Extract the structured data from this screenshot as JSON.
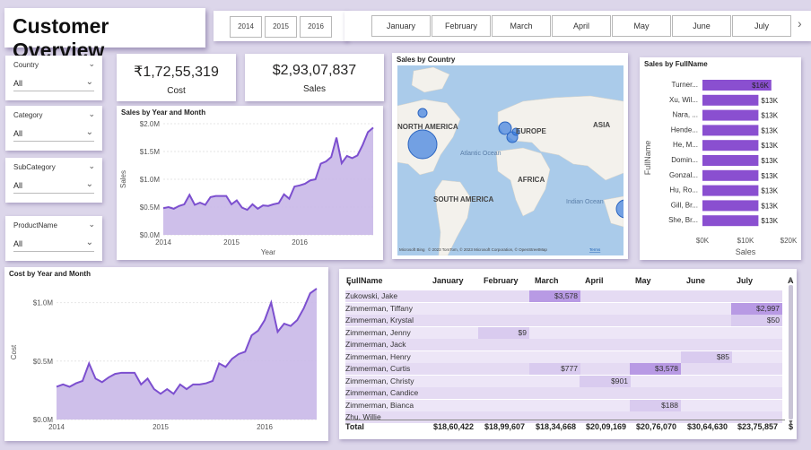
{
  "page_title": "Customer Overview",
  "year_slicer": [
    "2014",
    "2015",
    "2016"
  ],
  "month_slicer": [
    "January",
    "February",
    "March",
    "April",
    "May",
    "June",
    "July"
  ],
  "filters": [
    {
      "label": "Country",
      "value": "All"
    },
    {
      "label": "Category",
      "value": "All"
    },
    {
      "label": "SubCategory",
      "value": "All"
    },
    {
      "label": "ProductName",
      "value": "All"
    }
  ],
  "kpis": {
    "cost": {
      "value": "₹1,72,55,319",
      "caption": "Cost"
    },
    "sales": {
      "value": "$2,93,07,837",
      "caption": "Sales"
    }
  },
  "sales_chart_title": "Sales by Year and Month",
  "cost_chart_title": "Cost by Year and Month",
  "map": {
    "title": "Sales by Country",
    "labels": [
      "NORTH AMERICA",
      "EUROPE",
      "ASIA",
      "Atlantic Ocean",
      "AFRICA",
      "SOUTH AMERICA",
      "Indian Ocean"
    ],
    "attribution": "Microsoft Bing",
    "copyright": "© 2023 TomTom, © 2023 Microsoft Corporation, © OpenStreetMap",
    "terms": "Terms"
  },
  "table": {
    "columns": [
      "FullName",
      "January",
      "February",
      "March",
      "April",
      "May",
      "June",
      "July",
      "A"
    ],
    "rows": [
      {
        "name": "Zukowski, Jake",
        "cells": {
          "2": "$3,578"
        }
      },
      {
        "name": "Zimmerman, Tiffany",
        "cells": {
          "6": "$2,997"
        }
      },
      {
        "name": "Zimmerman, Krystal",
        "cells": {
          "6": "$50"
        }
      },
      {
        "name": "Zimmerman, Jenny",
        "cells": {
          "1": "$9"
        }
      },
      {
        "name": "Zimmerman, Jack",
        "cells": {}
      },
      {
        "name": "Zimmerman, Henry",
        "cells": {
          "5": "$85"
        }
      },
      {
        "name": "Zimmerman, Curtis",
        "cells": {
          "2": "$777",
          "4": "$3,578"
        }
      },
      {
        "name": "Zimmerman, Christy",
        "cells": {
          "3": "$901"
        }
      },
      {
        "name": "Zimmerman, Candice",
        "cells": {}
      },
      {
        "name": "Zimmerman, Bianca",
        "cells": {
          "4": "$188"
        }
      },
      {
        "name": "Zhu, Willie",
        "cells": {}
      }
    ],
    "total_label": "Total",
    "totals": [
      "$18,60,422",
      "$18,99,607",
      "$18,34,668",
      "$20,09,169",
      "$20,76,070",
      "$30,64,630",
      "$23,75,857",
      "$"
    ]
  },
  "chart_data": [
    {
      "type": "area",
      "title": "Sales by Year and Month",
      "xlabel": "Year",
      "ylabel": "Sales",
      "x_ticks": [
        "2014",
        "2015",
        "2016"
      ],
      "y_ticks": [
        "$0.0M",
        "$0.5M",
        "$1.0M",
        "$1.5M",
        "$2.0M"
      ],
      "ylim": [
        0,
        2.0
      ],
      "unit": "M",
      "values": [
        0.48,
        0.5,
        0.47,
        0.52,
        0.55,
        0.72,
        0.54,
        0.58,
        0.54,
        0.68,
        0.7,
        0.7,
        0.7,
        0.55,
        0.62,
        0.49,
        0.45,
        0.55,
        0.47,
        0.53,
        0.52,
        0.55,
        0.57,
        0.73,
        0.65,
        0.87,
        0.89,
        0.92,
        0.98,
        1.0,
        1.28,
        1.32,
        1.4,
        1.75,
        1.29,
        1.42,
        1.38,
        1.43,
        1.62,
        1.85,
        1.93
      ]
    },
    {
      "type": "area",
      "title": "Cost by Year and Month",
      "xlabel": "",
      "ylabel": "Cost",
      "x_ticks": [
        "2014",
        "2015",
        "2016"
      ],
      "y_ticks": [
        "$0.0M",
        "$0.5M",
        "$1.0M"
      ],
      "ylim": [
        0,
        1.15
      ],
      "unit": "M",
      "values": [
        0.28,
        0.3,
        0.28,
        0.31,
        0.33,
        0.48,
        0.35,
        0.32,
        0.36,
        0.39,
        0.4,
        0.4,
        0.4,
        0.3,
        0.35,
        0.26,
        0.22,
        0.26,
        0.22,
        0.3,
        0.26,
        0.3,
        0.3,
        0.31,
        0.33,
        0.48,
        0.45,
        0.52,
        0.56,
        0.58,
        0.72,
        0.76,
        0.85,
        1.0,
        0.75,
        0.82,
        0.8,
        0.85,
        0.95,
        1.08,
        1.12
      ]
    },
    {
      "type": "bar",
      "title": "Sales by FullName",
      "xlabel": "Sales",
      "ylabel": "FullName",
      "categories": [
        "Turner...",
        "Xu, Wil...",
        "Nara, ...",
        "Hende...",
        "He, M...",
        "Domin...",
        "Gonzal...",
        "Hu, Ro...",
        "Gill, Br...",
        "She, Br..."
      ],
      "values": [
        16,
        13,
        13,
        13,
        13,
        13,
        13,
        13,
        13,
        13
      ],
      "labels": [
        "$16K",
        "$13K",
        "$13K",
        "$13K",
        "$13K",
        "$13K",
        "$13K",
        "$13K",
        "$13K",
        "$13K"
      ],
      "x_ticks": [
        "$0K",
        "$10K",
        "$20K"
      ],
      "xlim": [
        0,
        20
      ]
    }
  ]
}
